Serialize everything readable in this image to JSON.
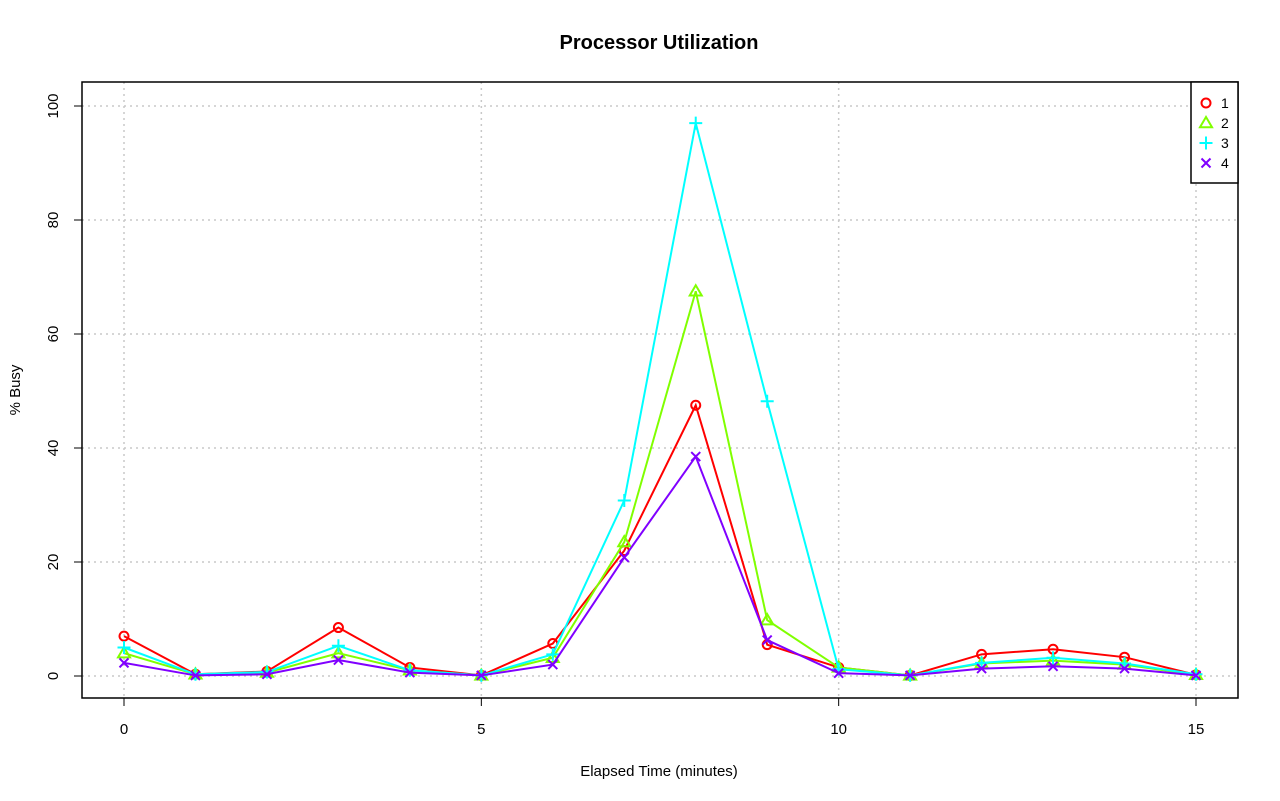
{
  "chart_data": {
    "type": "line",
    "title": "Processor Utilization",
    "xlabel": "Elapsed Time (minutes)",
    "ylabel": "% Busy",
    "xlim": [
      0,
      15
    ],
    "ylim": [
      0,
      100
    ],
    "x_ticks": [
      "0",
      "5",
      "10",
      "15"
    ],
    "y_ticks": [
      "0",
      "20",
      "40",
      "60",
      "80",
      "100"
    ],
    "grid": true,
    "legend_position": "top-right",
    "x": [
      0,
      1,
      2,
      3,
      4,
      5,
      6,
      7,
      8,
      9,
      10,
      11,
      12,
      13,
      14,
      15
    ],
    "series": [
      {
        "name": "1",
        "color": "#ff0000",
        "marker": "circle",
        "values": [
          7.0,
          0.3,
          0.8,
          8.5,
          1.5,
          0.1,
          5.7,
          22.0,
          47.5,
          5.5,
          1.5,
          0.1,
          3.8,
          4.7,
          3.3,
          0.2
        ]
      },
      {
        "name": "2",
        "color": "#80ff00",
        "marker": "triangle",
        "values": [
          4.0,
          0.3,
          0.6,
          4.0,
          1.0,
          0.1,
          3.2,
          23.5,
          67.5,
          9.8,
          1.5,
          0.1,
          2.2,
          2.7,
          2.0,
          0.2
        ]
      },
      {
        "name": "3",
        "color": "#00ffff",
        "marker": "plus",
        "values": [
          5.0,
          0.3,
          0.7,
          5.3,
          1.0,
          0.1,
          3.8,
          30.8,
          97.0,
          48.2,
          1.2,
          0.1,
          2.3,
          3.2,
          2.2,
          0.3
        ]
      },
      {
        "name": "4",
        "color": "#8000ff",
        "marker": "x",
        "values": [
          2.3,
          0.1,
          0.3,
          2.8,
          0.6,
          0.1,
          2.0,
          20.8,
          38.5,
          6.3,
          0.5,
          0.1,
          1.3,
          1.7,
          1.3,
          0.1
        ]
      }
    ]
  }
}
